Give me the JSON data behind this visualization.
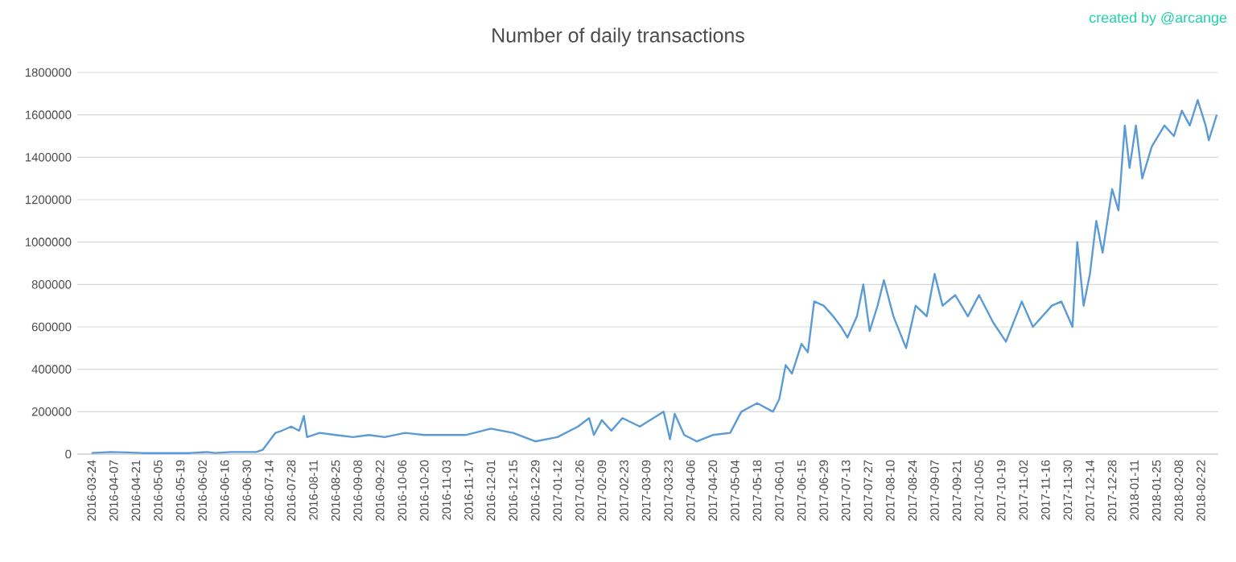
{
  "chart_data": {
    "type": "line",
    "title": "Number of daily transactions",
    "annotations": [
      "created by @arcange"
    ],
    "x": [
      "2016-03-24",
      "2016-04-05",
      "2016-04-15",
      "2016-04-25",
      "2016-05-10",
      "2016-05-25",
      "2016-06-05",
      "2016-06-10",
      "2016-06-20",
      "2016-07-06",
      "2016-07-10",
      "2016-07-14",
      "2016-07-18",
      "2016-07-22",
      "2016-07-28",
      "2016-08-02",
      "2016-08-05",
      "2016-08-07",
      "2016-08-15",
      "2016-08-25",
      "2016-09-05",
      "2016-09-15",
      "2016-09-25",
      "2016-10-08",
      "2016-10-20",
      "2016-11-01",
      "2016-11-15",
      "2016-12-01",
      "2016-12-15",
      "2016-12-29",
      "2017-01-12",
      "2017-01-25",
      "2017-02-01",
      "2017-02-04",
      "2017-02-09",
      "2017-02-15",
      "2017-02-22",
      "2017-03-05",
      "2017-03-20",
      "2017-03-24",
      "2017-03-27",
      "2017-04-02",
      "2017-04-10",
      "2017-04-20",
      "2017-05-01",
      "2017-05-08",
      "2017-05-18",
      "2017-05-28",
      "2017-06-01",
      "2017-06-05",
      "2017-06-09",
      "2017-06-15",
      "2017-06-19",
      "2017-06-23",
      "2017-06-29",
      "2017-07-05",
      "2017-07-10",
      "2017-07-14",
      "2017-07-20",
      "2017-07-24",
      "2017-07-28",
      "2017-08-02",
      "2017-08-06",
      "2017-08-12",
      "2017-08-20",
      "2017-08-26",
      "2017-09-02",
      "2017-09-07",
      "2017-09-12",
      "2017-09-20",
      "2017-09-28",
      "2017-10-05",
      "2017-10-14",
      "2017-10-22",
      "2017-11-01",
      "2017-11-08",
      "2017-11-20",
      "2017-11-26",
      "2017-12-03",
      "2017-12-06",
      "2017-12-10",
      "2017-12-14",
      "2017-12-18",
      "2017-12-22",
      "2017-12-28",
      "2018-01-01",
      "2018-01-05",
      "2018-01-08",
      "2018-01-12",
      "2018-01-16",
      "2018-01-22",
      "2018-01-30",
      "2018-02-05",
      "2018-02-10",
      "2018-02-15",
      "2018-02-20",
      "2018-02-25",
      "2018-02-27",
      "2018-03-04"
    ],
    "series": [
      {
        "color": "#5b9bd5",
        "values": [
          5000,
          10000,
          8000,
          5000,
          5000,
          5000,
          10000,
          5000,
          10000,
          10000,
          20000,
          60000,
          100000,
          110000,
          130000,
          110000,
          180000,
          80000,
          100000,
          90000,
          80000,
          90000,
          80000,
          100000,
          90000,
          90000,
          90000,
          120000,
          100000,
          60000,
          80000,
          130000,
          170000,
          90000,
          160000,
          110000,
          170000,
          130000,
          200000,
          70000,
          190000,
          90000,
          60000,
          90000,
          100000,
          200000,
          240000,
          200000,
          260000,
          420000,
          380000,
          520000,
          480000,
          720000,
          700000,
          650000,
          600000,
          550000,
          650000,
          800000,
          580000,
          700000,
          820000,
          650000,
          500000,
          700000,
          650000,
          850000,
          700000,
          750000,
          650000,
          750000,
          620000,
          530000,
          720000,
          600000,
          700000,
          720000,
          600000,
          1000000,
          700000,
          850000,
          1100000,
          950000,
          1250000,
          1150000,
          1550000,
          1350000,
          1550000,
          1300000,
          1450000,
          1550000,
          1500000,
          1620000,
          1550000,
          1670000,
          1550000,
          1480000,
          1600000
        ]
      }
    ],
    "xlim": [
      "2016-03-15",
      "2018-03-05"
    ],
    "xticks": [
      "2016-03-24",
      "2016-04-07",
      "2016-04-21",
      "2016-05-05",
      "2016-05-19",
      "2016-06-02",
      "2016-06-16",
      "2016-06-30",
      "2016-07-14",
      "2016-07-28",
      "2016-08-11",
      "2016-08-25",
      "2016-09-08",
      "2016-09-22",
      "2016-10-06",
      "2016-10-20",
      "2016-11-03",
      "2016-11-17",
      "2016-12-01",
      "2016-12-15",
      "2016-12-29",
      "2017-01-12",
      "2017-01-26",
      "2017-02-09",
      "2017-02-23",
      "2017-03-09",
      "2017-03-23",
      "2017-04-06",
      "2017-04-20",
      "2017-05-04",
      "2017-05-18",
      "2017-06-01",
      "2017-06-15",
      "2017-06-29",
      "2017-07-13",
      "2017-07-27",
      "2017-08-10",
      "2017-08-24",
      "2017-09-07",
      "2017-09-21",
      "2017-10-05",
      "2017-10-19",
      "2017-11-02",
      "2017-11-16",
      "2017-11-30",
      "2017-12-14",
      "2017-12-28",
      "2018-01-11",
      "2018-01-25",
      "2018-02-08",
      "2018-02-22"
    ],
    "ylim": [
      0,
      1800000
    ],
    "yticks": [
      0,
      200000,
      400000,
      600000,
      800000,
      1000000,
      1200000,
      1400000,
      1600000,
      1800000
    ],
    "grid": "y"
  }
}
